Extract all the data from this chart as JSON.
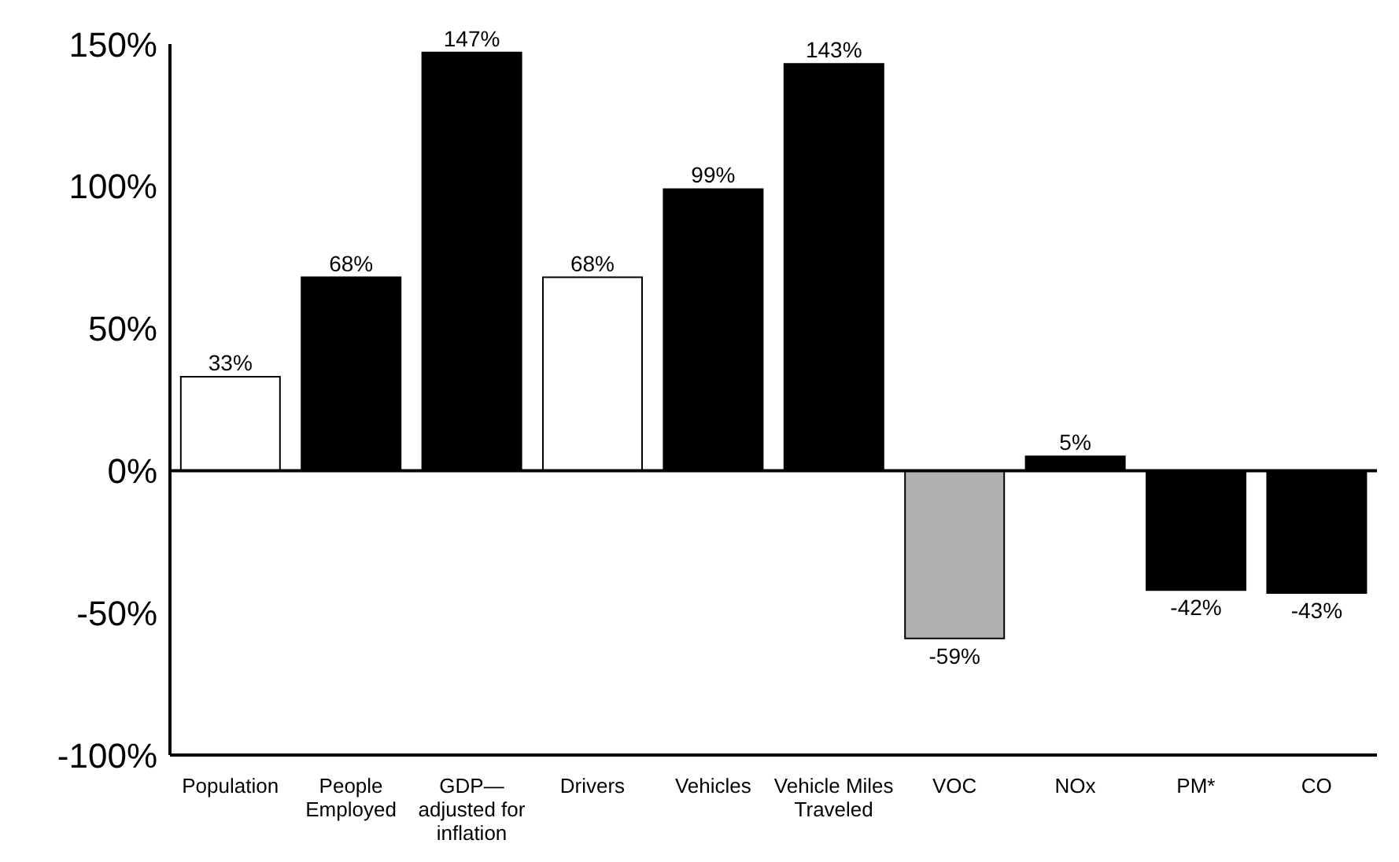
{
  "chart_data": {
    "type": "bar",
    "categories": [
      "Population",
      "People Employed",
      "GDP—adjusted for inflation",
      "Drivers",
      "Vehicles",
      "Vehicle Miles Traveled",
      "VOC",
      "NOx",
      "PM*",
      "CO"
    ],
    "values": [
      33,
      68,
      147,
      68,
      99,
      143,
      -59,
      5,
      -42,
      -43
    ],
    "colors": [
      "#ffffff",
      "#000000",
      "#000000",
      "#ffffff",
      "#000000",
      "#000000",
      "#b0b0b0",
      "#000000",
      "#000000",
      "#000000"
    ],
    "ylim": [
      -100,
      150
    ],
    "yticks": [
      {
        "value": -100,
        "label": "-100%"
      },
      {
        "value": -50,
        "label": "-50%"
      },
      {
        "value": 0,
        "label": "0%"
      },
      {
        "value": 50,
        "label": "50%"
      },
      {
        "value": 100,
        "label": "100%"
      },
      {
        "value": 150,
        "label": "150%"
      }
    ],
    "ref_lines": [
      {
        "axis": "y",
        "value": 0,
        "color": "#000000"
      }
    ],
    "value_labels": [
      "33%",
      "68%",
      "147%",
      "68%",
      "99%",
      "143%",
      "-59%",
      "5%",
      "-42%",
      "-43%"
    ],
    "grid": false,
    "legend": false
  }
}
